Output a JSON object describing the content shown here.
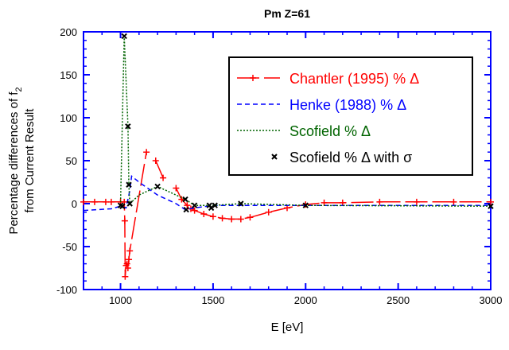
{
  "chart_data": {
    "type": "line",
    "title": "Pm Z=61",
    "xlabel": "E [eV]",
    "ylabel_line1": "Percentage differences of f",
    "ylabel_sub": "2",
    "ylabel_line2": "from Current Result",
    "xlim": [
      800,
      3000
    ],
    "ylim": [
      -100,
      200
    ],
    "xticks": [
      1000,
      1500,
      2000,
      2500,
      3000
    ],
    "yticks": [
      -100,
      -50,
      0,
      50,
      100,
      150,
      200
    ],
    "legend_position": "top-right",
    "series": [
      {
        "name": "Chantler (1995) % Δ",
        "color": "#ff0000",
        "style": "solid-plus",
        "x": [
          800,
          860,
          920,
          950,
          1000,
          1020,
          1023,
          1025,
          1030,
          1035,
          1040,
          1045,
          1050,
          1140,
          null,
          1190,
          1230,
          null,
          1300,
          1330,
          1360,
          1380,
          1400,
          1450,
          1500,
          1550,
          1600,
          1650,
          1700,
          1800,
          1900,
          2000,
          2100,
          2200,
          2400,
          2600,
          2800,
          3000
        ],
        "y": [
          2,
          2,
          2,
          2,
          2,
          2,
          -20,
          -85,
          -72,
          -70,
          -75,
          -65,
          -55,
          60,
          null,
          50,
          30,
          null,
          18,
          5,
          -2,
          -6,
          -8,
          -12,
          -15,
          -17,
          -18,
          -18,
          -16,
          -10,
          -5,
          -1,
          1,
          1,
          2,
          2,
          2,
          2
        ]
      },
      {
        "name": "Henke (1988) % Δ",
        "color": "#0000ff",
        "style": "dashed",
        "x": [
          800,
          950,
          1000,
          1030,
          1050,
          1060,
          1100,
          1200,
          1300,
          1350,
          1400,
          1500,
          2000,
          3000
        ],
        "y": [
          -8,
          -6,
          -3,
          -5,
          15,
          32,
          25,
          10,
          0,
          -7,
          -5,
          -2,
          -2,
          -2
        ]
      },
      {
        "name": "Scofield % Δ",
        "color": "#006400",
        "style": "dotted",
        "x": [
          1000,
          1020,
          1040,
          1045,
          1050,
          1100,
          1200,
          1300,
          1350,
          1400,
          1500,
          1650,
          2000,
          3000
        ],
        "y": [
          -2,
          195,
          90,
          22,
          0,
          10,
          20,
          10,
          5,
          -2,
          -2,
          0,
          -2,
          -3
        ]
      },
      {
        "name": "Scofield % Δ with σ",
        "color": "#000000",
        "style": "markers",
        "x": [
          1000,
          1010,
          1020,
          1040,
          1045,
          1050,
          1200,
          1350,
          1355,
          1400,
          1480,
          1490,
          1510,
          1650,
          2000,
          3000
        ],
        "y": [
          -2,
          -3,
          195,
          90,
          22,
          0,
          20,
          5,
          -7,
          -2,
          -2,
          -5,
          -2,
          0,
          -2,
          -3
        ]
      }
    ]
  }
}
